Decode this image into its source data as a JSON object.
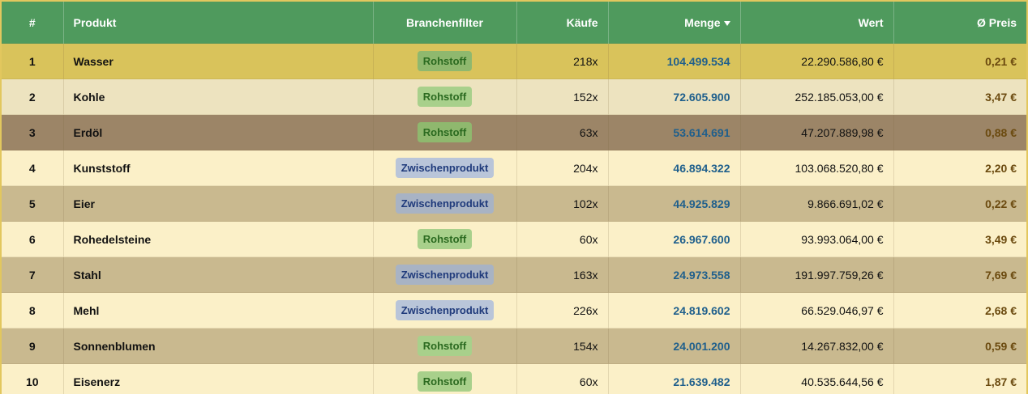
{
  "table": {
    "columns": [
      "#",
      "Produkt",
      "Branchenfilter",
      "Käufe",
      "Menge",
      "Wert",
      "Ø Preis"
    ],
    "rows": [
      [
        "1",
        "Wasser",
        "Rohstoff",
        "218x",
        "104.499.534",
        "22.290.586,80 €",
        "0,21 €"
      ],
      [
        "2",
        "Kohle",
        "Rohstoff",
        "152x",
        "72.605.900",
        "252.185.053,00 €",
        "3,47 €"
      ],
      [
        "3",
        "Erdöl",
        "Rohstoff",
        "63x",
        "53.614.691",
        "47.207.889,98 €",
        "0,88 €"
      ],
      [
        "4",
        "Kunststoff",
        "Zwischenprodukt",
        "204x",
        "46.894.322",
        "103.068.520,80 €",
        "2,20 €"
      ],
      [
        "5",
        "Eier",
        "Zwischenprodukt",
        "102x",
        "44.925.829",
        "9.866.691,02 €",
        "0,22 €"
      ],
      [
        "6",
        "Rohedelsteine",
        "Rohstoff",
        "60x",
        "26.967.600",
        "93.993.064,00 €",
        "3,49 €"
      ],
      [
        "7",
        "Stahl",
        "Zwischenprodukt",
        "163x",
        "24.973.558",
        "191.997.759,26 €",
        "7,69 €"
      ],
      [
        "8",
        "Mehl",
        "Zwischenprodukt",
        "226x",
        "24.819.602",
        "66.529.046,97 €",
        "2,68 €"
      ],
      [
        "9",
        "Sonnenblumen",
        "Rohstoff",
        "154x",
        "24.001.200",
        "14.267.832,00 €",
        "0,59 €"
      ],
      [
        "10",
        "Eisenerz",
        "Rohstoff",
        "60x",
        "21.639.482",
        "40.535.644,56 €",
        "1,87 €"
      ]
    ]
  }
}
